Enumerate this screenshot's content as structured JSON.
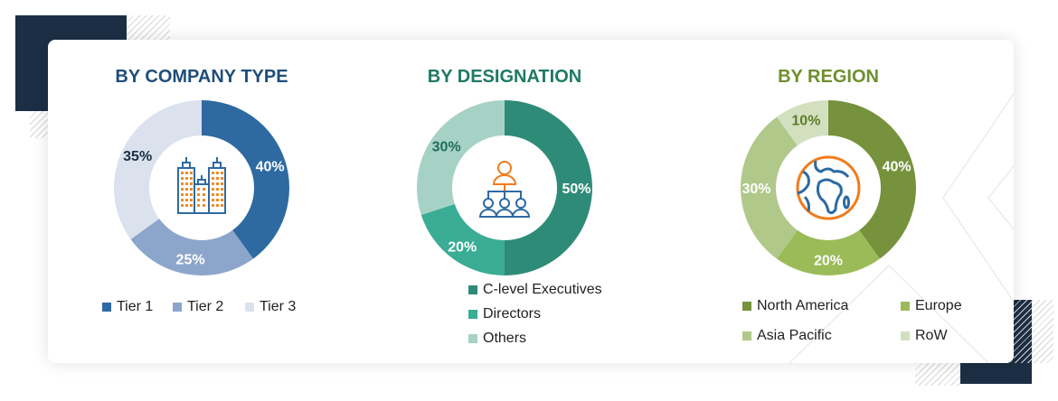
{
  "chart_data": [
    {
      "type": "pie",
      "title": "BY COMPANY TYPE",
      "title_color": "#1f4e79",
      "icon": "buildings-icon",
      "categories": [
        "Tier 1",
        "Tier 2",
        "Tier 3"
      ],
      "values": [
        40,
        25,
        35
      ],
      "labels": [
        "40%",
        "25%",
        "35%"
      ],
      "colors": [
        "#2e6aa1",
        "#8ca6cb",
        "#dbe2ee"
      ],
      "label_colors": [
        "#ffffff",
        "#ffffff",
        "#1c2e44"
      ],
      "legend_placement": "bottom"
    },
    {
      "type": "pie",
      "title": "BY DESIGNATION",
      "title_color": "#1f7a64",
      "icon": "org-hierarchy-icon",
      "categories": [
        "C-level Executives",
        "Directors",
        "Others"
      ],
      "values": [
        50,
        20,
        30
      ],
      "labels": [
        "50%",
        "20%",
        "30%"
      ],
      "colors": [
        "#2e8b78",
        "#3aad94",
        "#a6d2c6"
      ],
      "label_colors": [
        "#ffffff",
        "#ffffff",
        "#1f6e5c"
      ],
      "legend_placement": "bottom"
    },
    {
      "type": "pie",
      "title": "BY REGION",
      "title_color": "#6f8f2e",
      "icon": "globe-icon",
      "categories": [
        "North America",
        "Europe",
        "Asia Pacific",
        "RoW"
      ],
      "values": [
        40,
        20,
        30,
        10
      ],
      "labels": [
        "40%",
        "20%",
        "30%",
        "10%"
      ],
      "colors": [
        "#76923c",
        "#9bbb59",
        "#b0c98a",
        "#d3e0c0"
      ],
      "label_colors": [
        "#ffffff",
        "#ffffff",
        "#ffffff",
        "#5e7d2a"
      ],
      "legend_placement": "bottom"
    }
  ]
}
